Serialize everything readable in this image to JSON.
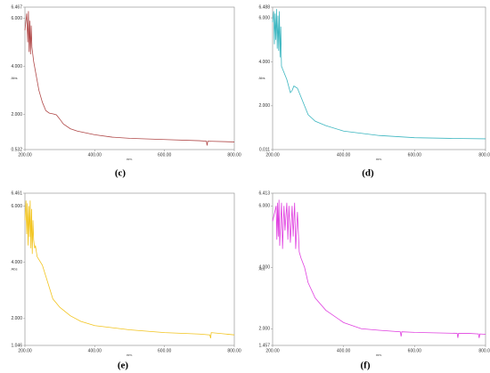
{
  "chart_data": [
    {
      "type": "line",
      "caption": "(c)",
      "x_label": "nm.",
      "y_label": "Abs",
      "color": "#b04848",
      "x": [
        200,
        205,
        208,
        210,
        212,
        214,
        216,
        218,
        220,
        225,
        230,
        240,
        250,
        260,
        270,
        280,
        290,
        300,
        310,
        330,
        350,
        400,
        450,
        500,
        600,
        700,
        720,
        722,
        724,
        800
      ],
      "values": [
        5.5,
        6.2,
        5.0,
        6.3,
        4.6,
        5.9,
        4.5,
        5.7,
        4.8,
        4.2,
        3.8,
        3.0,
        2.5,
        2.15,
        2.05,
        2.02,
        1.98,
        1.8,
        1.6,
        1.4,
        1.3,
        1.15,
        1.05,
        1.0,
        0.95,
        0.9,
        0.88,
        0.7,
        0.88,
        0.85
      ],
      "xlim": [
        200,
        800
      ],
      "ylim": [
        0.532,
        6.467
      ],
      "xticks": [
        {
          "value": 200,
          "label": "200.00"
        },
        {
          "value": 400,
          "label": "400.00"
        },
        {
          "value": 600,
          "label": "600.00"
        },
        {
          "value": 800,
          "label": "800.00"
        }
      ],
      "yticks": [
        0.532,
        {
          "value": 2,
          "label": "2.000"
        },
        {
          "value": 4,
          "label": "4.000"
        },
        {
          "value": 6,
          "label": "6.000"
        },
        6.467
      ]
    },
    {
      "type": "line",
      "caption": "(d)",
      "x_label": "nm.",
      "y_label": "Abs",
      "color": "#3cb6c0",
      "x": [
        200,
        203,
        205,
        207,
        209,
        211,
        213,
        215,
        217,
        219,
        221,
        223,
        225,
        230,
        240,
        250,
        255,
        260,
        270,
        280,
        290,
        300,
        320,
        350,
        400,
        500,
        600,
        700,
        800
      ],
      "values": [
        5.8,
        6.3,
        4.8,
        6.2,
        5.0,
        6.4,
        4.6,
        6.1,
        4.5,
        6.3,
        4.2,
        5.6,
        3.8,
        3.6,
        3.2,
        2.6,
        2.7,
        2.9,
        2.8,
        2.4,
        2.0,
        1.6,
        1.3,
        1.1,
        0.85,
        0.65,
        0.55,
        0.52,
        0.5
      ],
      "xlim": [
        200,
        800
      ],
      "ylim": [
        0.011,
        6.488
      ],
      "xticks": [
        {
          "value": 200,
          "label": "200.00"
        },
        {
          "value": 400,
          "label": "400.00"
        },
        {
          "value": 600,
          "label": "600.00"
        },
        {
          "value": 800,
          "label": "800.00"
        }
      ],
      "yticks": [
        0.011,
        {
          "value": 2,
          "label": "2.000"
        },
        {
          "value": 4,
          "label": "4.000"
        },
        {
          "value": 6,
          "label": "6.000"
        },
        6.488
      ]
    },
    {
      "type": "line",
      "caption": "(e)",
      "x_label": "nm.",
      "y_label": "Abs",
      "color": "#f2c41e",
      "x": [
        200,
        203,
        205,
        207,
        209,
        211,
        213,
        215,
        217,
        219,
        221,
        223,
        225,
        228,
        230,
        235,
        240,
        250,
        260,
        270,
        280,
        300,
        330,
        360,
        400,
        500,
        600,
        700,
        730,
        732,
        734,
        800
      ],
      "values": [
        5.5,
        6.2,
        5.0,
        6.1,
        4.6,
        6.0,
        4.9,
        6.2,
        4.5,
        5.9,
        4.3,
        5.5,
        4.8,
        4.5,
        4.6,
        4.2,
        4.1,
        3.9,
        3.5,
        3.1,
        2.7,
        2.4,
        2.1,
        1.9,
        1.75,
        1.6,
        1.5,
        1.45,
        1.42,
        1.3,
        1.5,
        1.42
      ],
      "xlim": [
        200,
        800
      ],
      "ylim": [
        1.046,
        6.461
      ],
      "xticks": [
        {
          "value": 200,
          "label": "200.00"
        },
        {
          "value": 400,
          "label": "400.00"
        },
        {
          "value": 600,
          "label": "600.00"
        },
        {
          "value": 800,
          "label": "800.00"
        }
      ],
      "yticks": [
        1.046,
        {
          "value": 2,
          "label": "2.000"
        },
        {
          "value": 4,
          "label": "4.000"
        },
        {
          "value": 6,
          "label": "6.000"
        },
        6.461
      ]
    },
    {
      "type": "line",
      "caption": "(f)",
      "x_label": "nm.",
      "y_label": "Abs",
      "color": "#e040e0",
      "x": [
        200,
        210,
        212,
        214,
        216,
        218,
        220,
        225,
        228,
        232,
        235,
        240,
        243,
        246,
        250,
        255,
        258,
        262,
        265,
        270,
        275,
        280,
        290,
        300,
        320,
        350,
        400,
        450,
        500,
        560,
        562,
        564,
        600,
        720,
        722,
        724,
        750,
        780,
        782,
        784,
        800
      ],
      "values": [
        5.5,
        6.0,
        4.9,
        6.1,
        5.0,
        6.2,
        4.7,
        6.1,
        4.6,
        6.0,
        5.2,
        6.1,
        4.9,
        6.0,
        4.8,
        6.0,
        5.0,
        6.1,
        4.6,
        5.8,
        4.5,
        4.3,
        4.0,
        3.5,
        3.0,
        2.6,
        2.2,
        2.0,
        1.95,
        1.9,
        1.75,
        1.9,
        1.88,
        1.85,
        1.7,
        1.85,
        1.85,
        1.83,
        1.7,
        1.83,
        1.82
      ],
      "xlim": [
        200,
        800
      ],
      "ylim": [
        1.457,
        6.413
      ],
      "xticks": [
        {
          "value": 200,
          "label": "200.00"
        },
        {
          "value": 400,
          "label": "400.00"
        },
        {
          "value": 600,
          "label": "600.00"
        },
        {
          "value": 800,
          "label": "800.00"
        }
      ],
      "yticks": [
        1.457,
        {
          "value": 2,
          "label": "2.000"
        },
        {
          "value": 4,
          "label": "4.000"
        },
        {
          "value": 6,
          "label": "6.000"
        },
        6.413
      ]
    }
  ]
}
